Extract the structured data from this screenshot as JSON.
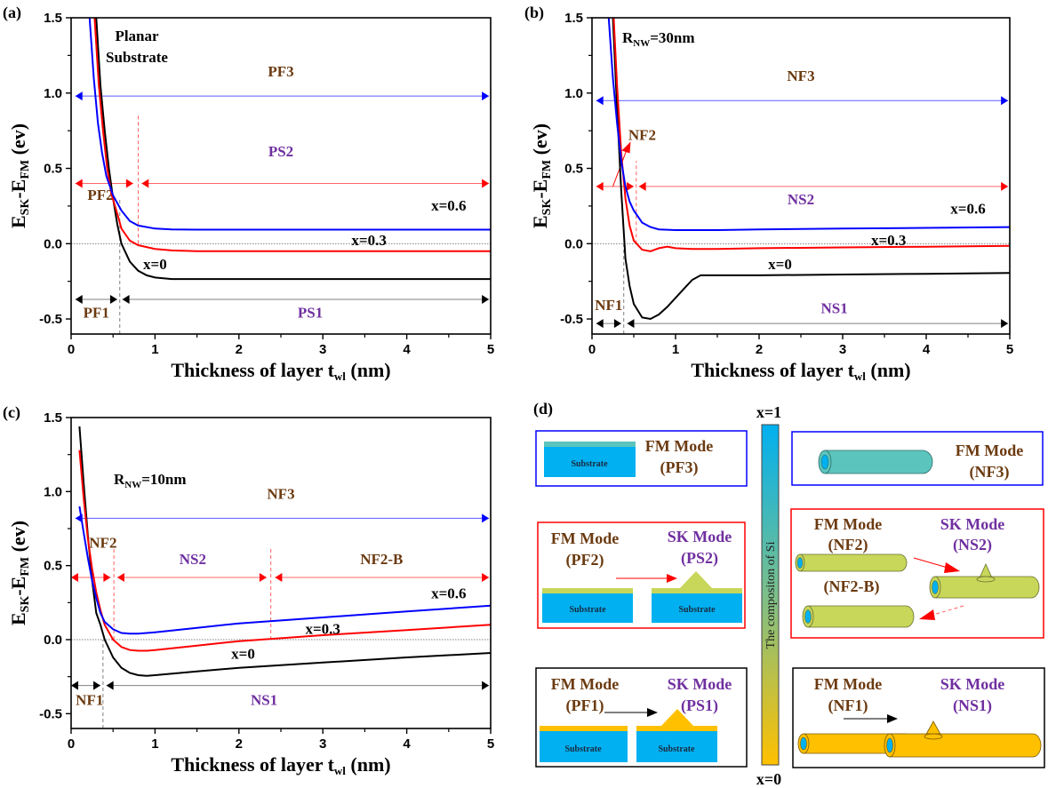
{
  "figure": {
    "colors": {
      "x0": "#000000",
      "x03": "#ff0000",
      "x06": "#0000ff",
      "brown": "#6b3a10",
      "purple": "#7030a0",
      "substrate": "#00b0f0",
      "teal_layer": "#5bc5bd",
      "yellow_green_layer": "#c8d65a",
      "gold_layer": "#ffc000"
    }
  },
  "chart_data": [
    {
      "id": "a",
      "type": "line",
      "panel_label": "(a)",
      "title_annotation": [
        "Planar",
        "Substrate"
      ],
      "xlabel": "Thickness of layer t",
      "xlabel_sub": "wl",
      "xlabel_suffix": " (nm)",
      "ylabel_main": "E",
      "ylabel_sub1": "SK",
      "ylabel_mid": "-E",
      "ylabel_sub2": "FM",
      "ylabel_suffix": " (ev)",
      "xlim": [
        0,
        5
      ],
      "ylim": [
        -0.6,
        1.5
      ],
      "xticks": [
        "0",
        "1",
        "2",
        "3",
        "4",
        "5"
      ],
      "yticks": [
        "-0.5",
        "0.0",
        "0.5",
        "1.0",
        "1.5"
      ],
      "ytick_values": [
        -0.5,
        0.0,
        0.5,
        1.0,
        1.5
      ],
      "xtick_values": [
        0,
        1,
        2,
        3,
        4,
        5
      ],
      "zero_line": true,
      "series": [
        {
          "name": "x=0",
          "color": "#000000",
          "label_pos": [
            1.0,
            -0.17
          ],
          "x": [
            0.3,
            0.35,
            0.4,
            0.45,
            0.5,
            0.55,
            0.6,
            0.7,
            0.8,
            0.9,
            1.0,
            1.2,
            1.5,
            2,
            3,
            4,
            5
          ],
          "y": [
            1.5,
            1.05,
            0.75,
            0.5,
            0.3,
            0.13,
            0.0,
            -0.12,
            -0.18,
            -0.21,
            -0.225,
            -0.235,
            -0.235,
            -0.235,
            -0.235,
            -0.235,
            -0.235
          ]
        },
        {
          "name": "x=0.3",
          "color": "#ff0000",
          "label_pos": [
            3.55,
            -0.01
          ],
          "x": [
            0.28,
            0.33,
            0.38,
            0.43,
            0.48,
            0.55,
            0.6,
            0.7,
            0.8,
            1.0,
            1.2,
            1.5,
            2,
            3,
            4,
            5
          ],
          "y": [
            1.5,
            1.05,
            0.75,
            0.5,
            0.33,
            0.2,
            0.1,
            0.02,
            -0.01,
            -0.035,
            -0.045,
            -0.05,
            -0.05,
            -0.05,
            -0.05,
            -0.05
          ]
        },
        {
          "name": "x=0.6",
          "color": "#0000ff",
          "label_pos": [
            4.5,
            0.22
          ],
          "x": [
            0.22,
            0.27,
            0.32,
            0.37,
            0.42,
            0.5,
            0.6,
            0.7,
            0.8,
            1.0,
            1.2,
            1.5,
            2,
            3,
            4,
            5
          ],
          "y": [
            1.5,
            1.1,
            0.8,
            0.6,
            0.45,
            0.32,
            0.22,
            0.15,
            0.12,
            0.1,
            0.095,
            0.093,
            0.093,
            0.093,
            0.093,
            0.093
          ]
        }
      ],
      "vlines": [
        {
          "x": 0.58,
          "y0": -0.6,
          "y1": 0.3,
          "color": "#808080",
          "dash": true
        },
        {
          "x": 0.8,
          "y0": 0.0,
          "y1": 0.85,
          "color": "#ff6060",
          "dash": true
        }
      ],
      "ranges": [
        {
          "label": "PF3",
          "class": "brown",
          "color": "#0000ff",
          "y": 0.98,
          "x0": 0.05,
          "x1": 4.98,
          "label_pos": [
            2.5,
            1.11
          ]
        },
        {
          "label": "PF2",
          "class": "brown",
          "color": "#ff0000",
          "y": 0.4,
          "x0": 0.05,
          "x1": 0.74,
          "label_pos": [
            0.35,
            0.29
          ]
        },
        {
          "label": "PS2",
          "class": "purple",
          "color": "#ff0000",
          "y": 0.4,
          "x0": 0.84,
          "x1": 4.98,
          "label_pos": [
            2.5,
            0.58
          ]
        },
        {
          "label": "PF1",
          "class": "brown",
          "color": "#000000",
          "y": -0.37,
          "x0": 0.05,
          "x1": 0.55,
          "label_pos": [
            0.3,
            -0.49
          ]
        },
        {
          "label": "PS1",
          "class": "purple",
          "color": "#000000",
          "y": -0.37,
          "x0": 0.61,
          "x1": 4.98,
          "label_pos": [
            2.85,
            -0.49
          ]
        }
      ],
      "arrows": []
    },
    {
      "id": "b",
      "type": "line",
      "panel_label": "(b)",
      "title_annotation": [
        "R",
        "NW",
        "=30nm"
      ],
      "xlabel": "Thickness of layer t",
      "xlabel_sub": "wl",
      "xlabel_suffix": " (nm)",
      "ylabel_main": "E",
      "ylabel_sub1": "SK",
      "ylabel_mid": "-E",
      "ylabel_sub2": "FM",
      "ylabel_suffix": " (ev)",
      "xlim": [
        0,
        5
      ],
      "ylim": [
        -0.6,
        1.5
      ],
      "xticks": [
        "0",
        "1",
        "2",
        "3",
        "4",
        "5"
      ],
      "yticks": [
        "-0.5",
        "0.0",
        "0.5",
        "1.0",
        "1.5"
      ],
      "ytick_values": [
        -0.5,
        0.0,
        0.5,
        1.0,
        1.5
      ],
      "xtick_values": [
        0,
        1,
        2,
        3,
        4,
        5
      ],
      "zero_line": true,
      "series": [
        {
          "name": "x=0",
          "color": "#000000",
          "label_pos": [
            2.25,
            -0.17
          ],
          "x": [
            0.25,
            0.3,
            0.35,
            0.4,
            0.45,
            0.5,
            0.6,
            0.7,
            0.8,
            0.9,
            1.0,
            1.1,
            1.2,
            1.3,
            2,
            3,
            4,
            5
          ],
          "y": [
            1.5,
            0.9,
            0.35,
            -0.1,
            -0.28,
            -0.4,
            -0.49,
            -0.5,
            -0.47,
            -0.42,
            -0.36,
            -0.3,
            -0.24,
            -0.21,
            -0.21,
            -0.205,
            -0.2,
            -0.195
          ]
        },
        {
          "name": "x=0.3",
          "color": "#ff0000",
          "label_pos": [
            3.55,
            -0.01
          ],
          "x": [
            0.26,
            0.3,
            0.35,
            0.4,
            0.45,
            0.5,
            0.6,
            0.7,
            0.8,
            0.9,
            1.0,
            1.2,
            1.5,
            2,
            3,
            4,
            5
          ],
          "y": [
            1.5,
            1.05,
            0.6,
            0.3,
            0.12,
            0.02,
            -0.04,
            -0.05,
            -0.03,
            -0.02,
            -0.03,
            -0.035,
            -0.035,
            -0.03,
            -0.025,
            -0.02,
            -0.015
          ]
        },
        {
          "name": "x=0.6",
          "color": "#0000ff",
          "label_pos": [
            4.5,
            0.2
          ],
          "x": [
            0.2,
            0.25,
            0.3,
            0.35,
            0.4,
            0.45,
            0.5,
            0.6,
            0.7,
            0.8,
            1.0,
            1.5,
            2,
            3,
            4,
            5
          ],
          "y": [
            1.5,
            1.1,
            0.8,
            0.55,
            0.38,
            0.28,
            0.22,
            0.14,
            0.11,
            0.095,
            0.09,
            0.09,
            0.095,
            0.1,
            0.105,
            0.11
          ]
        }
      ],
      "vlines": [
        {
          "x": 0.38,
          "y0": -0.6,
          "y1": 0.0,
          "color": "#808080",
          "dash": true
        },
        {
          "x": 0.53,
          "y0": 0.0,
          "y1": 0.55,
          "color": "#ff6060",
          "dash": true
        }
      ],
      "ranges": [
        {
          "label": "NF3",
          "class": "brown",
          "color": "#0000ff",
          "y": 0.95,
          "x0": 0.05,
          "x1": 4.98,
          "label_pos": [
            2.5,
            1.08
          ]
        },
        {
          "label": "NS2",
          "class": "purple",
          "color": "#ff0000",
          "y": 0.38,
          "x0": 0.56,
          "x1": 4.98,
          "label_pos": [
            2.5,
            0.26
          ]
        },
        {
          "label": "",
          "class": "brown",
          "color": "#ff0000",
          "y": 0.38,
          "x0": 0.05,
          "x1": 0.5,
          "label_pos": [
            0.0,
            0.0
          ]
        },
        {
          "label": "NS1",
          "class": "purple",
          "color": "#000000",
          "y": -0.53,
          "x0": 0.42,
          "x1": 4.98,
          "label_pos": [
            2.9,
            -0.46
          ]
        },
        {
          "label": "NF1",
          "class": "brown",
          "color": "#000000",
          "y": -0.53,
          "x0": 0.05,
          "x1": 0.35,
          "label_pos": [
            0.2,
            -0.44
          ]
        }
      ],
      "arrows": [
        {
          "label": "NF2",
          "class": "brown",
          "color": "#ff0000",
          "from": [
            0.25,
            0.38
          ],
          "to": [
            0.42,
            0.63
          ],
          "label_pos": [
            0.6,
            0.69
          ]
        }
      ]
    },
    {
      "id": "c",
      "type": "line",
      "panel_label": "(c)",
      "title_annotation": [
        "R",
        "NW",
        "=10nm"
      ],
      "xlabel": "Thickness of layer t",
      "xlabel_sub": "wl",
      "xlabel_suffix": " (nm)",
      "ylabel_main": "E",
      "ylabel_sub1": "SK",
      "ylabel_mid": "-E",
      "ylabel_sub2": "FM",
      "ylabel_suffix": " (ev)",
      "xlim": [
        0,
        5
      ],
      "ylim": [
        -0.6,
        1.5
      ],
      "xticks": [
        "0",
        "1",
        "2",
        "3",
        "4",
        "5"
      ],
      "yticks": [
        "-0.5",
        "0.0",
        "0.5",
        "1.0",
        "1.5"
      ],
      "ytick_values": [
        -0.5,
        0.0,
        0.5,
        1.0,
        1.5
      ],
      "xtick_values": [
        0,
        1,
        2,
        3,
        4,
        5
      ],
      "zero_line": true,
      "series": [
        {
          "name": "x=0",
          "color": "#000000",
          "label_pos": [
            2.05,
            -0.13
          ],
          "x": [
            0.1,
            0.15,
            0.2,
            0.25,
            0.3,
            0.35,
            0.4,
            0.5,
            0.6,
            0.7,
            0.8,
            0.9,
            1.0,
            1.5,
            2,
            3,
            4,
            5
          ],
          "y": [
            1.44,
            1.05,
            0.7,
            0.4,
            0.18,
            0.1,
            0.0,
            -0.12,
            -0.19,
            -0.225,
            -0.24,
            -0.245,
            -0.24,
            -0.215,
            -0.19,
            -0.155,
            -0.12,
            -0.09
          ]
        },
        {
          "name": "x=0.3",
          "color": "#ff0000",
          "label_pos": [
            3.0,
            0.04
          ],
          "x": [
            0.1,
            0.15,
            0.2,
            0.25,
            0.3,
            0.35,
            0.4,
            0.5,
            0.6,
            0.7,
            0.8,
            0.9,
            1.0,
            1.5,
            2,
            3,
            4,
            5
          ],
          "y": [
            1.28,
            0.95,
            0.68,
            0.48,
            0.32,
            0.2,
            0.1,
            0.0,
            -0.05,
            -0.07,
            -0.075,
            -0.075,
            -0.07,
            -0.04,
            -0.01,
            0.03,
            0.065,
            0.1
          ]
        },
        {
          "name": "x=0.6",
          "color": "#0000ff",
          "label_pos": [
            4.5,
            0.28
          ],
          "x": [
            0.1,
            0.15,
            0.2,
            0.25,
            0.3,
            0.35,
            0.4,
            0.5,
            0.6,
            0.7,
            0.8,
            0.9,
            1.0,
            1.5,
            2,
            3,
            4,
            5
          ],
          "y": [
            0.9,
            0.72,
            0.55,
            0.4,
            0.28,
            0.18,
            0.12,
            0.07,
            0.045,
            0.04,
            0.04,
            0.045,
            0.05,
            0.08,
            0.11,
            0.15,
            0.19,
            0.23
          ]
        }
      ],
      "vlines": [
        {
          "x": 0.38,
          "y0": -0.6,
          "y1": 0.0,
          "color": "#808080",
          "dash": true
        },
        {
          "x": 0.51,
          "y0": 0.0,
          "y1": 0.62,
          "color": "#ff6060",
          "dash": true
        },
        {
          "x": 2.38,
          "y0": 0.0,
          "y1": 0.62,
          "color": "#ff6060",
          "dash": true
        }
      ],
      "ranges": [
        {
          "label": "NF3",
          "class": "brown",
          "color": "#0000ff",
          "y": 0.82,
          "x0": 0.05,
          "x1": 4.98,
          "label_pos": [
            2.5,
            0.95
          ]
        },
        {
          "label": "NF2",
          "class": "brown",
          "color": "#ff0000",
          "y": 0.42,
          "x0": 0.0,
          "x1": 0.47,
          "label_pos": [
            0.38,
            0.62
          ]
        },
        {
          "label": "NS2",
          "class": "purple",
          "color": "#ff0000",
          "y": 0.42,
          "x0": 0.55,
          "x1": 2.33,
          "label_pos": [
            1.45,
            0.51
          ]
        },
        {
          "label": "NF2-B",
          "class": "brown",
          "color": "#ff0000",
          "y": 0.42,
          "x0": 2.43,
          "x1": 4.98,
          "label_pos": [
            3.7,
            0.51
          ]
        },
        {
          "label": "NF1",
          "class": "brown",
          "color": "#000000",
          "y": -0.31,
          "x0": 0.0,
          "x1": 0.35,
          "label_pos": [
            0.22,
            -0.44
          ]
        },
        {
          "label": "NS1",
          "class": "purple",
          "color": "#000000",
          "y": -0.31,
          "x0": 0.42,
          "x1": 4.98,
          "label_pos": [
            2.3,
            -0.44
          ]
        }
      ],
      "arrows": []
    }
  ],
  "diagram": {
    "panel_label": "(d)",
    "colorbar": {
      "top_label": "x=1",
      "bottom_label": "x=0",
      "caption": "The compositon of Si",
      "top_color": "#00b0f0",
      "bottom_color": "#ffc000"
    },
    "substrate_label": "Substrate",
    "boxes": {
      "pf3": {
        "title": "FM Mode",
        "code": "(PF3)"
      },
      "pf2": {
        "title": "FM Mode",
        "code": "(PF2)"
      },
      "ps2": {
        "title": "SK Mode",
        "code": "(PS2)"
      },
      "pf1": {
        "title": "FM Mode",
        "code": "(PF1)"
      },
      "ps1": {
        "title": "SK Mode",
        "code": "(PS1)"
      },
      "nf3": {
        "title": "FM Mode",
        "code": "(NF3)"
      },
      "nf2": {
        "title": "FM Mode",
        "code": "(NF2)"
      },
      "ns2": {
        "title": "SK Mode",
        "code": "(NS2)"
      },
      "nf2b": {
        "code": "(NF2-B)"
      },
      "nf1": {
        "title": "FM Mode",
        "code": "(NF1)"
      },
      "ns1": {
        "title": "SK Mode",
        "code": "(NS1)"
      }
    }
  }
}
